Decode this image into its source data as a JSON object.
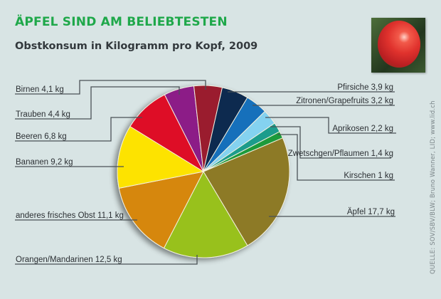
{
  "header": {
    "title": "ÄPFEL SIND AM BELIEBTESTEN",
    "subtitle": "Obstkonsum in Kilogramm pro Kopf, 2009",
    "photo_icon": "apple-photo"
  },
  "source": "QUELLE: SOV/SBV/BLW; Bruno Wanner, LID; www.lid.ch",
  "chart_data": {
    "type": "pie",
    "title": "Obstkonsum in Kilogramm pro Kopf, 2009",
    "unit": "kg",
    "slices": [
      {
        "name": "Äpfel",
        "value": 17.7,
        "label": "Äpfel  17,7 kg",
        "color": "#8d7a26"
      },
      {
        "name": "Orangen/Mandarinen",
        "value": 12.5,
        "label": "Orangen/Mandarinen  12,5 kg",
        "color": "#98c11f"
      },
      {
        "name": "anderes frisches Obst",
        "value": 11.1,
        "label": "anderes frisches Obst  11,1 kg",
        "color": "#d6870f"
      },
      {
        "name": "Bananen",
        "value": 9.2,
        "label": "Bananen  9,2 kg",
        "color": "#fde300"
      },
      {
        "name": "Beeren",
        "value": 6.8,
        "label": "Beeren  6,8 kg",
        "color": "#de0726"
      },
      {
        "name": "Trauben",
        "value": 4.4,
        "label": "Trauben  4,4 kg",
        "color": "#8c1f87"
      },
      {
        "name": "Birnen",
        "value": 4.1,
        "label": "Birnen  4,1 kg",
        "color": "#9a1e2e"
      },
      {
        "name": "Pfirsiche",
        "value": 3.9,
        "label": "Pfirsiche 3,9 kg",
        "color": "#10294f"
      },
      {
        "name": "Zitronen/Grapefruits",
        "value": 3.2,
        "label": "Zitronen/Grapefruits  3,2 kg",
        "color": "#1470bb"
      },
      {
        "name": "Aprikosen",
        "value": 2.2,
        "label": "Aprikosen  2,2 kg",
        "color": "#84d2f0"
      },
      {
        "name": "Zwetschgen/Pflaumen",
        "value": 1.4,
        "label": "Zwetschgen/Pflaumen 1,4 kg",
        "color": "#1e9c8c"
      },
      {
        "name": "Kirschen",
        "value": 1,
        "label": "Kirschen  1 kg",
        "color": "#1c9a3a"
      }
    ],
    "legend": "leader-line labels"
  }
}
